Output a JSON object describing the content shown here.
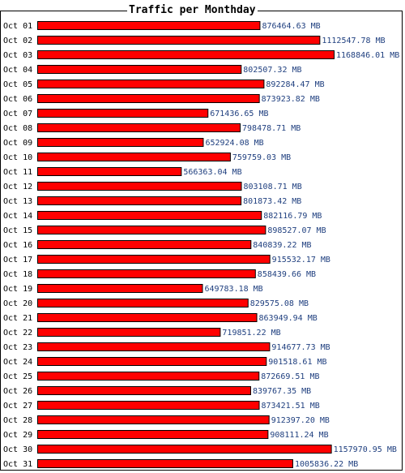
{
  "chart_data": {
    "type": "bar",
    "orientation": "horizontal",
    "title": "Traffic per Monthday",
    "unit": "MB",
    "categories": [
      "Oct 01",
      "Oct 02",
      "Oct 03",
      "Oct 04",
      "Oct 05",
      "Oct 06",
      "Oct 07",
      "Oct 08",
      "Oct 09",
      "Oct 10",
      "Oct 11",
      "Oct 12",
      "Oct 13",
      "Oct 14",
      "Oct 15",
      "Oct 16",
      "Oct 17",
      "Oct 18",
      "Oct 19",
      "Oct 20",
      "Oct 21",
      "Oct 22",
      "Oct 23",
      "Oct 24",
      "Oct 25",
      "Oct 26",
      "Oct 27",
      "Oct 28",
      "Oct 29",
      "Oct 30",
      "Oct 31"
    ],
    "values": [
      876464.63,
      1112547.78,
      1168846.01,
      802507.32,
      892284.47,
      873923.82,
      671436.65,
      798478.71,
      652924.08,
      759759.03,
      566363.04,
      803108.71,
      801873.42,
      882116.79,
      898527.07,
      840839.22,
      915532.17,
      858439.66,
      649783.18,
      829575.08,
      863949.94,
      719851.22,
      914677.73,
      901518.61,
      872669.51,
      839767.35,
      873421.51,
      912397.2,
      908111.24,
      1157970.95,
      1005836.22
    ],
    "value_labels": [
      "876464.63 MB",
      "1112547.78 MB",
      "1168846.01 MB",
      "802507.32 MB",
      "892284.47 MB",
      "873923.82 MB",
      "671436.65 MB",
      "798478.71 MB",
      "652924.08 MB",
      "759759.03 MB",
      "566363.04 MB",
      "803108.71 MB",
      "801873.42 MB",
      "882116.79 MB",
      "898527.07 MB",
      "840839.22 MB",
      "915532.17 MB",
      "858439.66 MB",
      "649783.18 MB",
      "829575.08 MB",
      "863949.94 MB",
      "719851.22 MB",
      "914677.73 MB",
      "901518.61 MB",
      "872669.51 MB",
      "839767.35 MB",
      "873421.51 MB",
      "912397.20 MB",
      "908111.24 MB",
      "1157970.95 MB",
      "1005836.22 MB"
    ],
    "bar_color": "#ff0000",
    "value_label_color": "#1f3f7f",
    "grid": false,
    "legend": "none"
  }
}
